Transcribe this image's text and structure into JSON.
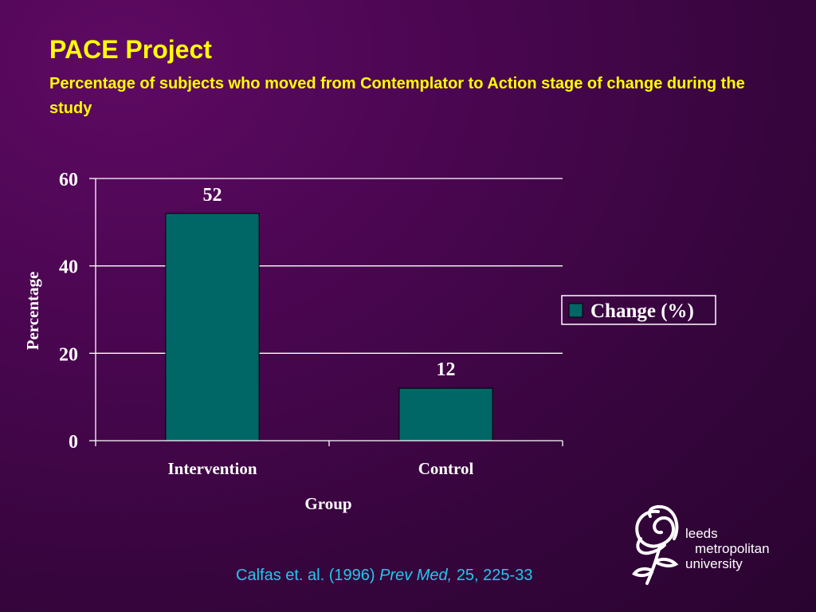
{
  "slide": {
    "title": "PACE Project",
    "subtitle": "Percentage of subjects who moved from Contemplator to Action stage of change during the study",
    "citation_authors": "Calfas et. al. (1996)",
    "citation_journal": "Prev Med,",
    "citation_pages": "25, 225-33"
  },
  "logo": {
    "line1": "leeds",
    "line2": "metropolitan",
    "line3": "university",
    "icon": "rose-icon"
  },
  "colors": {
    "title": "#ffff00",
    "citation": "#22c8ee",
    "bar": "#006666",
    "axis": "#ffffff"
  },
  "chart_data": {
    "type": "bar",
    "categories": [
      "Intervention",
      "Control"
    ],
    "series": [
      {
        "name": "Change (%)",
        "values": [
          52,
          12
        ]
      }
    ],
    "data_labels": [
      "52",
      "12"
    ],
    "xlabel": "Group",
    "ylabel": "Percentage",
    "ylim": [
      0,
      60
    ],
    "yticks": [
      0,
      20,
      40,
      60
    ],
    "grid": true,
    "legend_position": "right"
  }
}
